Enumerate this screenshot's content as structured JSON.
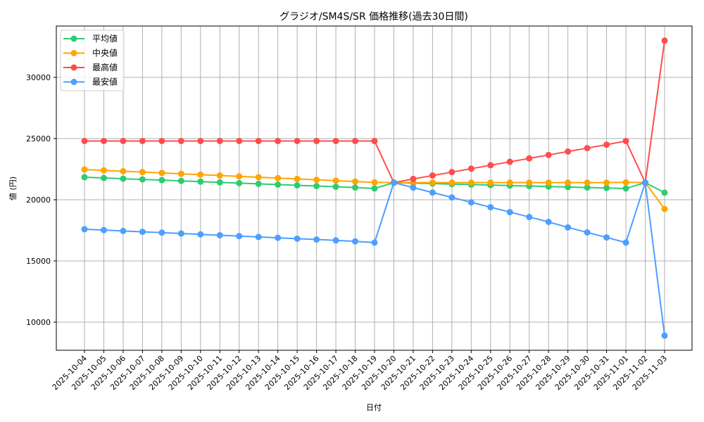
{
  "chart_data": {
    "type": "line",
    "title": "グラジオ/SM4S/SR 価格推移(過去30日間)",
    "xlabel": "日付",
    "ylabel": "値 (円)",
    "ylim": [
      7700,
      34200
    ],
    "yticks": [
      10000,
      15000,
      20000,
      25000,
      30000
    ],
    "grid": true,
    "legend_position": "upper left",
    "categories": [
      "2025-10-04",
      "2025-10-05",
      "2025-10-06",
      "2025-10-07",
      "2025-10-08",
      "2025-10-09",
      "2025-10-10",
      "2025-10-11",
      "2025-10-12",
      "2025-10-13",
      "2025-10-14",
      "2025-10-15",
      "2025-10-16",
      "2025-10-17",
      "2025-10-18",
      "2025-10-19",
      "2025-10-20",
      "2025-10-21",
      "2025-10-22",
      "2025-10-23",
      "2025-10-24",
      "2025-10-25",
      "2025-10-26",
      "2025-10-27",
      "2025-10-28",
      "2025-10-29",
      "2025-10-30",
      "2025-10-31",
      "2025-11-01",
      "2025-11-02",
      "2025-11-03"
    ],
    "series": [
      {
        "name": "平均値",
        "color": "#2ecc71",
        "values": [
          21840,
          21780,
          21720,
          21660,
          21600,
          21540,
          21480,
          21420,
          21360,
          21300,
          21240,
          21180,
          21120,
          21060,
          21000,
          20920,
          21400,
          21360,
          21320,
          21280,
          21240,
          21200,
          21160,
          21120,
          21080,
          21040,
          21000,
          20960,
          20920,
          21400,
          20580
        ]
      },
      {
        "name": "中央値",
        "color": "#ffa500",
        "values": [
          22470,
          22400,
          22330,
          22260,
          22190,
          22120,
          22050,
          21980,
          21910,
          21840,
          21770,
          21700,
          21630,
          21560,
          21490,
          21420,
          21400,
          21400,
          21400,
          21400,
          21400,
          21400,
          21400,
          21400,
          21400,
          21400,
          21400,
          21400,
          21420,
          21400,
          19250
        ]
      },
      {
        "name": "最高値",
        "color": "#ff4d4d",
        "values": [
          24800,
          24800,
          24800,
          24800,
          24800,
          24800,
          24800,
          24800,
          24800,
          24800,
          24800,
          24800,
          24800,
          24800,
          24800,
          24800,
          21400,
          21700,
          21980,
          22260,
          22540,
          22820,
          23100,
          23380,
          23660,
          23940,
          24220,
          24500,
          24800,
          21400,
          33000
        ]
      },
      {
        "name": "最安値",
        "color": "#4d9fff",
        "values": [
          17590,
          17520,
          17450,
          17380,
          17310,
          17240,
          17170,
          17100,
          17030,
          16960,
          16890,
          16820,
          16750,
          16680,
          16600,
          16500,
          21400,
          20990,
          20590,
          20190,
          19790,
          19390,
          18990,
          18590,
          18190,
          17740,
          17330,
          16920,
          16500,
          21400,
          8900
        ]
      }
    ]
  }
}
